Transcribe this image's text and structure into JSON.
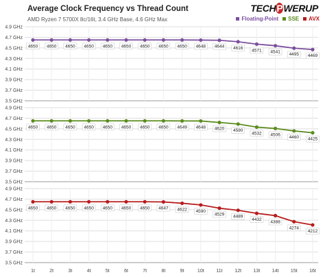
{
  "header": {
    "title": "Average Clock Frequency vs Thread Count",
    "subtitle": "AMD Ryzen 7 5700X 8c/16t, 3.4 GHz Base, 4.6 GHz Max",
    "logo_left": "TECH",
    "logo_mid": "P",
    "logo_right": "WERUP"
  },
  "legend": [
    {
      "name": "Floating-Point",
      "color": "#7b4f9e"
    },
    {
      "name": "SSE",
      "color": "#5b8c1e"
    },
    {
      "name": "AVX",
      "color": "#b71c1c"
    }
  ],
  "chart_data": [
    {
      "type": "line",
      "name": "Floating-Point",
      "color": "#7b4f9e",
      "x": [
        "1t",
        "2t",
        "3t",
        "4t",
        "5t",
        "6t",
        "7t",
        "8t",
        "9t",
        "10t",
        "11t",
        "12t",
        "13t",
        "14t",
        "15t",
        "16t"
      ],
      "values": [
        4650,
        4650,
        4650,
        4650,
        4650,
        4650,
        4650,
        4650,
        4650,
        4648,
        4644,
        4616,
        4571,
        4541,
        4495,
        4469
      ],
      "yticks": [
        "4.9 GHz",
        "4.7 GHz",
        "4.5 GHz",
        "4.3 GHz",
        "4.1 GHz",
        "3.9 GHz",
        "3.7 GHz",
        "3.5 GHz"
      ],
      "ylim": [
        3500,
        4900
      ]
    },
    {
      "type": "line",
      "name": "SSE",
      "color": "#5b8c1e",
      "x": [
        "1t",
        "2t",
        "3t",
        "4t",
        "5t",
        "6t",
        "7t",
        "8t",
        "9t",
        "10t",
        "11t",
        "12t",
        "13t",
        "14t",
        "15t",
        "16t"
      ],
      "values": [
        4650,
        4650,
        4650,
        4650,
        4650,
        4650,
        4650,
        4650,
        4649,
        4648,
        4620,
        4590,
        4532,
        4506,
        4460,
        4425
      ],
      "yticks": [
        "4.9 GHz",
        "4.7 GHz",
        "4.5 GHz",
        "4.3 GHz",
        "4.1 GHz",
        "3.9 GHz",
        "3.7 GHz",
        "3.5 GHz"
      ],
      "ylim": [
        3500,
        4900
      ]
    },
    {
      "type": "line",
      "name": "AVX",
      "color": "#b71c1c",
      "x": [
        "1t",
        "2t",
        "3t",
        "4t",
        "5t",
        "6t",
        "7t",
        "8t",
        "9t",
        "10t",
        "11t",
        "12t",
        "13t",
        "14t",
        "15t",
        "16t"
      ],
      "values": [
        4650,
        4650,
        4650,
        4650,
        4650,
        4650,
        4650,
        4647,
        4622,
        4590,
        4529,
        4489,
        4432,
        4388,
        4274,
        4212
      ],
      "yticks": [
        "4.9 GHz",
        "4.7 GHz",
        "4.5 GHz",
        "4.3 GHz",
        "4.1 GHz",
        "3.9 GHz",
        "3.7 GHz",
        "3.5 GHz"
      ],
      "ylim": [
        3500,
        4900
      ]
    }
  ]
}
